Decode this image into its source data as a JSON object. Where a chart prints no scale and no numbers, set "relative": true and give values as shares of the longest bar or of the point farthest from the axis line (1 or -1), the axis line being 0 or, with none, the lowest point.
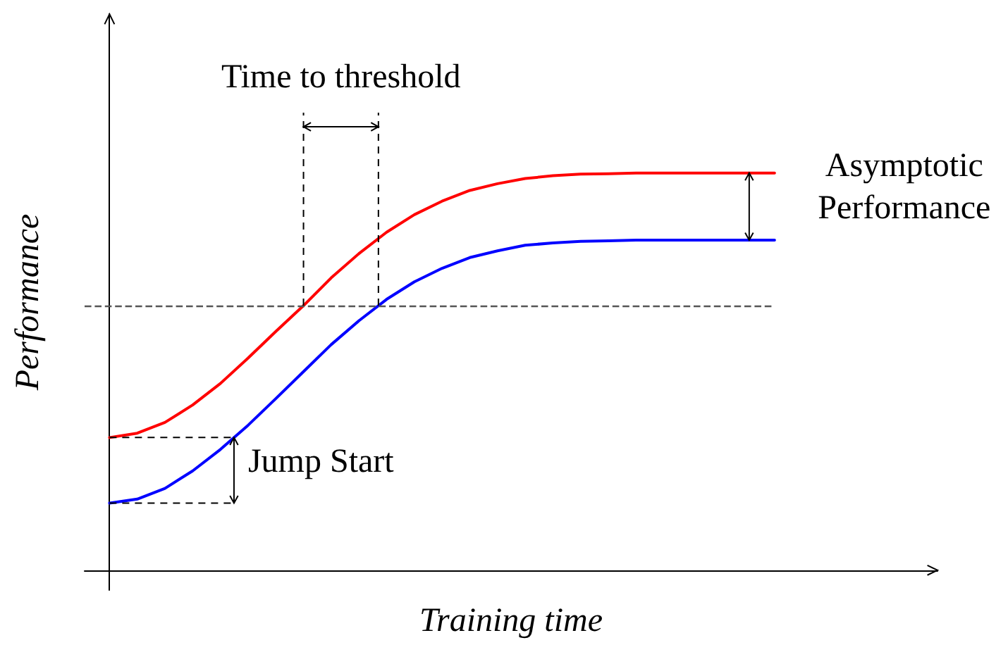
{
  "chart_data": {
    "type": "line",
    "relative": true,
    "xlabel": "Training time",
    "ylabel": "Performance",
    "categories": [
      null,
      null,
      null,
      null,
      null,
      null,
      null,
      null,
      null,
      null,
      null,
      null,
      null,
      null,
      null,
      null,
      null,
      null,
      null,
      null,
      null,
      null,
      null,
      null,
      null
    ],
    "series": [
      {
        "color": "#ff0000",
        "values": [
          0.334,
          0.345,
          0.372,
          0.416,
          0.47,
          0.534,
          0.601,
          0.666,
          0.736,
          0.797,
          0.851,
          0.895,
          0.929,
          0.956,
          0.973,
          0.986,
          0.993,
          0.997,
          0.998,
          1,
          1,
          1,
          1,
          1,
          1
        ]
      },
      {
        "color": "#0000ff",
        "values": [
          0.169,
          0.179,
          0.206,
          0.25,
          0.304,
          0.365,
          0.432,
          0.5,
          0.568,
          0.628,
          0.682,
          0.726,
          0.76,
          0.787,
          0.804,
          0.818,
          0.824,
          0.828,
          0.829,
          0.831,
          0.831,
          0.831,
          0.831,
          0.831,
          0.831
        ]
      }
    ],
    "ref_lines": [
      {
        "axis": "y",
        "value": 0.666,
        "color": "#555555",
        "line_style": "dashed"
      }
    ],
    "annotations": [
      "Time to threshold",
      "Asymptotic Performance",
      "Jump Start"
    ],
    "grid": false,
    "marker": "none",
    "line_style": "solid",
    "tick_labels": false
  }
}
